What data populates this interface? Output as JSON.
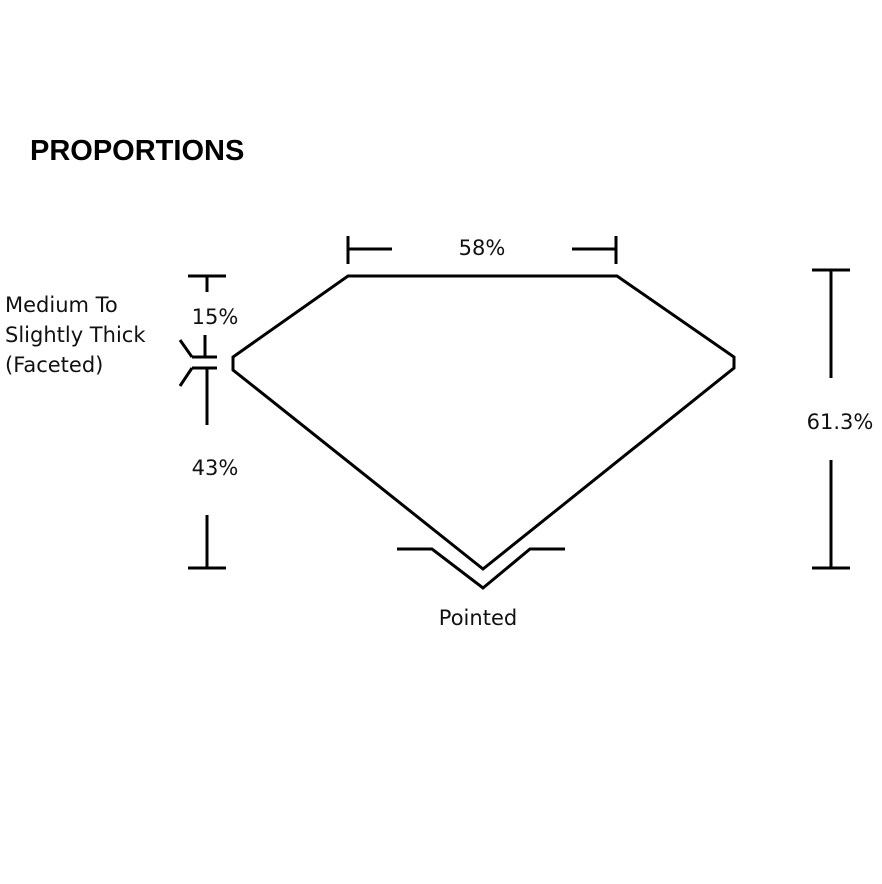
{
  "title": "PROPORTIONS",
  "labels": {
    "table": "58%",
    "crown": "15%",
    "pavilion": "43%",
    "depth": "61.3%",
    "girdle": [
      "Medium To",
      "Slightly Thick",
      "(Faceted)"
    ],
    "culet": "Pointed"
  },
  "colors": {
    "line": "#000000",
    "background": "#ffffff"
  }
}
